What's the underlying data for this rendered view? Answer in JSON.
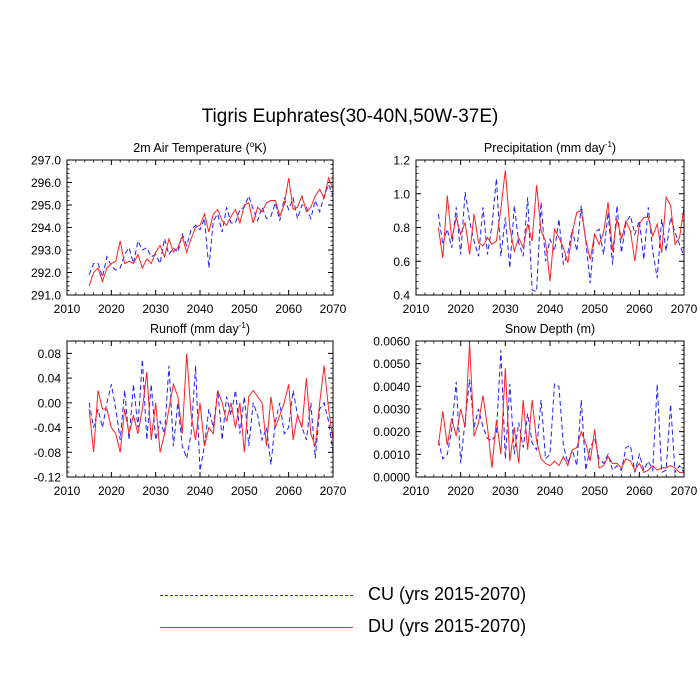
{
  "title": "Tigris Euphrates(30-40N,50W-37E)",
  "colors": {
    "cu": "#1f1fff",
    "du": "#ff2020"
  },
  "legend": {
    "cu_label": "CU (yrs 2015-2070)",
    "du_label": "DU (yrs 2015-2070)"
  },
  "chart_data": [
    {
      "type": "line",
      "title": "2m Air Temperature (°K)",
      "title_main": "2m Air Temperature (",
      "title_sup": "o",
      "title_tail": "K)",
      "xlim": [
        2010,
        2070
      ],
      "ylim": [
        291.0,
        297.0
      ],
      "x_ticks": [
        "2010",
        "2020",
        "2030",
        "2040",
        "2050",
        "2060",
        "2070"
      ],
      "y_ticks": [
        "291.0",
        "292.0",
        "293.0",
        "294.0",
        "295.0",
        "296.0",
        "297.0"
      ],
      "x_start": 2015,
      "series": [
        {
          "name": "CU",
          "style": "dashed",
          "values": [
            291.9,
            292.4,
            292.4,
            291.8,
            292.7,
            292.3,
            292.1,
            292.2,
            292.8,
            293.1,
            292.4,
            293.4,
            293.0,
            293.1,
            292.7,
            292.8,
            292.4,
            293.5,
            292.8,
            293.1,
            292.9,
            293.7,
            293.2,
            293.9,
            294.1,
            293.9,
            294.4,
            292.2,
            294.3,
            294.6,
            293.8,
            294.9,
            294.2,
            294.2,
            294.8,
            294.9,
            295.4,
            294.8,
            294.3,
            294.9,
            294.4,
            294.5,
            295.1,
            294.3,
            295.3,
            294.8,
            295.3,
            294.4,
            295.0,
            294.9,
            294.4,
            295.2,
            294.7,
            295.4,
            295.9,
            295.4
          ]
        },
        {
          "name": "DU",
          "style": "solid",
          "values": [
            291.4,
            292.0,
            292.2,
            291.6,
            292.2,
            292.4,
            292.5,
            293.4,
            292.4,
            292.5,
            292.4,
            292.8,
            292.2,
            292.6,
            292.4,
            292.9,
            293.2,
            292.7,
            293.5,
            292.9,
            293.1,
            293.6,
            292.9,
            293.5,
            294.0,
            294.1,
            294.6,
            293.8,
            294.6,
            294.8,
            294.3,
            294.1,
            294.5,
            294.8,
            294.2,
            295.0,
            295.1,
            294.2,
            294.9,
            294.7,
            295.1,
            295.2,
            295.2,
            294.5,
            295.0,
            296.2,
            294.8,
            294.9,
            295.4,
            294.7,
            294.9,
            295.4,
            295.7,
            295.3,
            296.2,
            295.7
          ]
        }
      ]
    },
    {
      "type": "line",
      "title": "Precipitation (mm day-1)",
      "title_main": "Precipitation (mm day",
      "title_sup": "-1",
      "title_tail": ")",
      "xlim": [
        2010,
        2070
      ],
      "ylim": [
        0.4,
        1.2
      ],
      "x_ticks": [
        "2010",
        "2020",
        "2030",
        "2040",
        "2050",
        "2060",
        "2070"
      ],
      "y_ticks": [
        "0.4",
        "0.6",
        "0.8",
        "1.0",
        "1.2"
      ],
      "x_start": 2015,
      "series": [
        {
          "name": "CU",
          "style": "dashed",
          "values": [
            0.88,
            0.7,
            0.79,
            0.68,
            0.92,
            0.64,
            1.01,
            0.84,
            0.72,
            0.63,
            0.92,
            0.64,
            0.81,
            1.09,
            0.63,
            0.86,
            0.56,
            0.93,
            0.71,
            0.63,
            0.98,
            0.43,
            0.42,
            0.95,
            0.6,
            0.73,
            0.66,
            0.85,
            0.58,
            0.65,
            0.79,
            0.66,
            0.93,
            0.72,
            0.47,
            0.77,
            0.79,
            0.64,
            0.89,
            0.58,
            0.93,
            0.65,
            0.83,
            0.87,
            0.76,
            0.84,
            0.61,
            0.92,
            0.66,
            0.5,
            0.85,
            0.66,
            0.86,
            0.77,
            0.7,
            0.63
          ]
        },
        {
          "name": "DU",
          "style": "solid",
          "values": [
            0.8,
            0.62,
            0.99,
            0.73,
            0.86,
            0.76,
            0.83,
            0.64,
            0.88,
            0.71,
            0.69,
            0.74,
            0.7,
            0.72,
            0.91,
            1.14,
            0.8,
            0.66,
            0.74,
            0.68,
            0.82,
            0.72,
            1.05,
            0.78,
            0.72,
            0.48,
            0.79,
            0.74,
            0.68,
            0.59,
            0.77,
            0.89,
            0.9,
            0.73,
            0.61,
            0.76,
            0.7,
            0.77,
            0.95,
            0.66,
            0.85,
            0.73,
            0.84,
            0.78,
            0.6,
            0.82,
            0.86,
            0.86,
            0.75,
            0.82,
            0.65,
            0.98,
            0.93,
            0.7,
            0.74,
            0.92
          ]
        }
      ]
    },
    {
      "type": "line",
      "title": "Runoff (mm day-1)",
      "title_main": "Runoff (mm day",
      "title_sup": "-1",
      "title_tail": ")",
      "xlim": [
        2010,
        2070
      ],
      "ylim": [
        -0.12,
        0.1
      ],
      "x_ticks": [
        "2010",
        "2020",
        "2030",
        "2040",
        "2050",
        "2060",
        "2070"
      ],
      "y_ticks": [
        "-0.12",
        "-0.08",
        "-0.04",
        "0.00",
        "0.04",
        "0.08"
      ],
      "x_start": 2015,
      "series": [
        {
          "name": "CU",
          "style": "dashed",
          "values": [
            0.0,
            -0.04,
            -0.01,
            -0.04,
            0.0,
            0.03,
            -0.01,
            -0.06,
            0.02,
            -0.06,
            0.03,
            -0.04,
            0.07,
            -0.06,
            0.03,
            -0.06,
            -0.03,
            -0.05,
            0.06,
            -0.07,
            0.0,
            -0.07,
            -0.09,
            -0.05,
            0.06,
            -0.11,
            -0.07,
            -0.01,
            -0.04,
            0.02,
            -0.06,
            0.01,
            -0.02,
            0.02,
            -0.05,
            0.01,
            -0.07,
            0.0,
            -0.02,
            -0.06,
            -0.04,
            -0.1,
            -0.03,
            0.0,
            -0.05,
            -0.04,
            0.02,
            -0.02,
            -0.04,
            -0.06,
            0.0,
            -0.09,
            -0.01,
            0.0,
            -0.03,
            -0.08
          ]
        },
        {
          "name": "DU",
          "style": "solid",
          "values": [
            -0.01,
            -0.08,
            0.02,
            -0.01,
            -0.01,
            -0.04,
            -0.05,
            -0.08,
            -0.01,
            -0.05,
            -0.02,
            -0.05,
            -0.01,
            0.05,
            -0.06,
            0.0,
            -0.08,
            -0.05,
            -0.01,
            0.03,
            0.01,
            -0.05,
            0.08,
            -0.02,
            -0.06,
            0.0,
            -0.07,
            -0.04,
            -0.05,
            0.02,
            0.0,
            -0.03,
            0.0,
            -0.04,
            0.0,
            -0.08,
            0.01,
            0.02,
            0.01,
            0.0,
            -0.07,
            0.01,
            -0.04,
            -0.02,
            0.0,
            0.03,
            -0.06,
            -0.02,
            -0.04,
            0.04,
            -0.05,
            -0.07,
            0.0,
            0.06,
            -0.01,
            -0.06
          ]
        }
      ]
    },
    {
      "type": "line",
      "title": "Snow Depth (m)",
      "title_main": "Snow Depth (m)",
      "title_sup": "",
      "title_tail": "",
      "xlim": [
        2010,
        2070
      ],
      "ylim": [
        0.0,
        0.006
      ],
      "x_ticks": [
        "2010",
        "2020",
        "2030",
        "2040",
        "2050",
        "2060",
        "2070"
      ],
      "y_ticks": [
        "0.0000",
        "0.0010",
        "0.0020",
        "0.0030",
        "0.0040",
        "0.0050",
        "0.0060"
      ],
      "x_start": 2015,
      "series": [
        {
          "name": "CU",
          "style": "dashed",
          "values": [
            0.0016,
            0.0008,
            0.001,
            0.0021,
            0.0042,
            0.0006,
            0.0025,
            0.0043,
            0.0022,
            0.003,
            0.0022,
            0.0017,
            0.0016,
            0.0019,
            0.0056,
            0.0008,
            0.0041,
            0.001,
            0.0024,
            0.0013,
            0.0028,
            0.0015,
            0.0012,
            0.0034,
            0.0008,
            0.001,
            0.0041,
            0.004,
            0.0014,
            0.0006,
            0.0012,
            0.0005,
            0.0034,
            0.0003,
            0.0013,
            0.0017,
            0.0008,
            0.0006,
            0.001,
            0.0003,
            0.0005,
            0.0003,
            0.0013,
            0.0014,
            0.0002,
            0.001,
            0.0003,
            0.0007,
            0.0003,
            0.0041,
            0.0002,
            0.0003,
            0.0032,
            0.0002,
            0.0005,
            0.0002
          ]
        },
        {
          "name": "DU",
          "style": "solid",
          "values": [
            0.0014,
            0.0029,
            0.0014,
            0.0026,
            0.0018,
            0.003,
            0.0022,
            0.0059,
            0.0018,
            0.0024,
            0.0036,
            0.0022,
            0.0004,
            0.0025,
            0.001,
            0.0048,
            0.0007,
            0.0022,
            0.0006,
            0.0034,
            0.0012,
            0.0034,
            0.0016,
            0.0008,
            0.0006,
            0.0005,
            0.0007,
            0.0005,
            0.0009,
            0.0005,
            0.0012,
            0.0013,
            0.002,
            0.0015,
            0.0007,
            0.0021,
            0.0004,
            0.0005,
            0.0009,
            0.0006,
            0.0006,
            0.0004,
            0.0008,
            0.0007,
            0.0003,
            0.0006,
            0.0002,
            0.0003,
            0.0005,
            0.0003,
            0.0004,
            0.0004,
            0.0005,
            0.0004,
            0.0002,
            0.0002
          ]
        }
      ]
    }
  ]
}
